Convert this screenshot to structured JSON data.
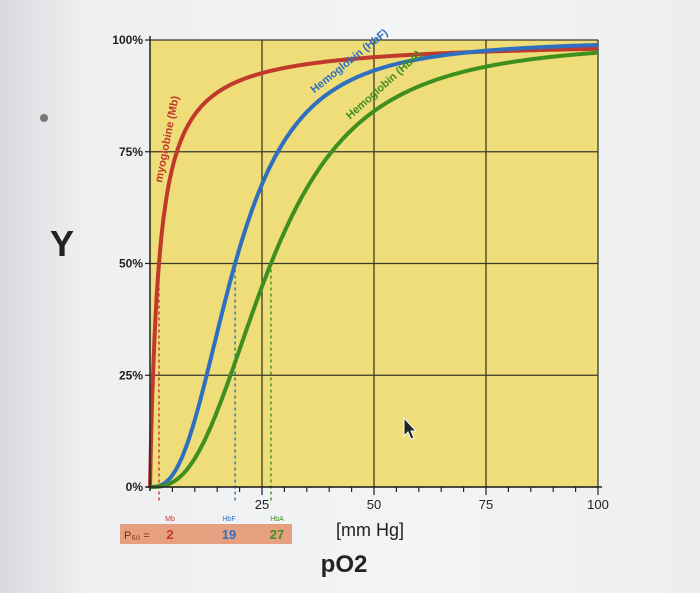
{
  "chart_data": {
    "type": "line",
    "x_range": [
      0,
      100
    ],
    "y_range": [
      0,
      100
    ],
    "xlabel": "pO2",
    "ylabel": "Y",
    "x_unit": "[mm Hg]",
    "x_ticks": [
      {
        "value": 25,
        "label": "25"
      },
      {
        "value": 50,
        "label": "50"
      },
      {
        "value": 75,
        "label": "75"
      },
      {
        "value": 100,
        "label": "100"
      }
    ],
    "y_ticks": [
      {
        "value": 0,
        "label": "0%"
      },
      {
        "value": 25,
        "label": "25%"
      },
      {
        "value": 50,
        "label": "50%"
      },
      {
        "value": 75,
        "label": "75%"
      },
      {
        "value": 100,
        "label": "100%"
      }
    ],
    "grid": true,
    "series": [
      {
        "name": "myoglobine (Mb)",
        "p50": 2,
        "hill": 1.0,
        "color": "#c0392b",
        "label_pos": 4,
        "x": [
          0,
          1,
          2,
          4,
          8,
          15,
          25,
          50,
          75,
          100
        ],
        "y": [
          0,
          33,
          50,
          67,
          80,
          88,
          93,
          96,
          98,
          98
        ]
      },
      {
        "name": "Hemoglobin (HbF)",
        "p50": 19,
        "hill": 2.7,
        "color": "#2f6fbf",
        "label_pos": 38,
        "x": [
          0,
          5,
          10,
          15,
          19,
          25,
          35,
          50,
          75,
          100
        ],
        "y": [
          0,
          3,
          15,
          34,
          50,
          68,
          85,
          94,
          98,
          99
        ]
      },
      {
        "name": "Hemoglobin (HbA)",
        "p50": 27,
        "hill": 2.7,
        "color": "#3f8f1f",
        "label_pos": 46,
        "x": [
          0,
          10,
          15,
          20,
          27,
          35,
          50,
          60,
          75,
          100
        ],
        "y": [
          0,
          7,
          17,
          31,
          50,
          67,
          84,
          90,
          95,
          98
        ]
      }
    ],
    "p50_label": "P₅₀ =",
    "p50_values": [
      {
        "series": "Mb",
        "value": "2",
        "tag": "Mb",
        "color": "#c0392b"
      },
      {
        "series": "HbF",
        "value": "19",
        "tag": "HbF",
        "color": "#2f6fbf"
      },
      {
        "series": "HbA",
        "value": "27",
        "tag": "HbA",
        "color": "#3f8f1f"
      }
    ]
  },
  "colors": {
    "plot_bg": "#eedd79",
    "grid": "#3a3a2a",
    "p50_strip": "#e6a07f"
  }
}
